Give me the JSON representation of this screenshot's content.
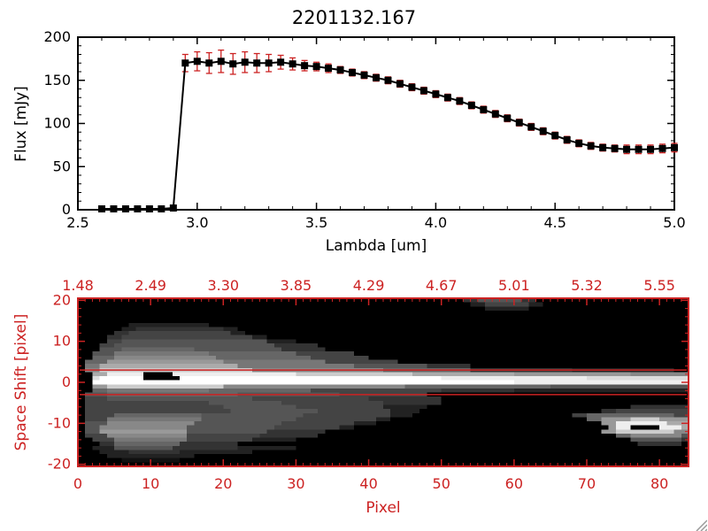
{
  "title": "2201132.167",
  "colors": {
    "red": "#cc2222",
    "foreground": "#000000",
    "background": "#ffffff"
  },
  "chart_data": [
    {
      "type": "line",
      "title": "2201132.167",
      "xlabel": "Lambda [um]",
      "ylabel": "Flux [mJy]",
      "xlim": [
        2.5,
        5.0
      ],
      "ylim": [
        0,
        200
      ],
      "xticks": [
        "2.5",
        "3.0",
        "3.5",
        "4.0",
        "4.5",
        "5.0"
      ],
      "yticks": [
        "0",
        "50",
        "100",
        "150",
        "200"
      ],
      "marker": "filled-square",
      "line_color_role": "foreground",
      "error_color_role": "red",
      "x": [
        2.6,
        2.65,
        2.7,
        2.75,
        2.8,
        2.85,
        2.9,
        2.95,
        3.0,
        3.05,
        3.1,
        3.15,
        3.2,
        3.25,
        3.3,
        3.35,
        3.4,
        3.45,
        3.5,
        3.55,
        3.6,
        3.65,
        3.7,
        3.75,
        3.8,
        3.85,
        3.9,
        3.95,
        4.0,
        4.05,
        4.1,
        4.15,
        4.2,
        4.25,
        4.3,
        4.35,
        4.4,
        4.45,
        4.5,
        4.55,
        4.6,
        4.65,
        4.7,
        4.75,
        4.8,
        4.85,
        4.9,
        4.95,
        5.0
      ],
      "series": [
        {
          "name": "flux_mJy",
          "values": [
            1,
            1,
            1,
            1,
            1,
            1,
            2,
            170,
            172,
            170,
            172,
            169,
            171,
            170,
            170,
            171,
            169,
            167,
            166,
            164,
            162,
            159,
            156,
            153,
            150,
            146,
            142,
            138,
            134,
            130,
            126,
            121,
            116,
            111,
            106,
            101,
            96,
            91,
            86,
            81,
            77,
            74,
            72,
            71,
            70,
            70,
            70,
            71,
            72
          ]
        }
      ],
      "errors": [
        2,
        2,
        2,
        2,
        2,
        2,
        2,
        10,
        11,
        12,
        13,
        12,
        12,
        11,
        10,
        8,
        7,
        6,
        5,
        5,
        4,
        4,
        4,
        4,
        4,
        4,
        4,
        4,
        4,
        4,
        4,
        4,
        4,
        4,
        4,
        4,
        4,
        4,
        4,
        4,
        4,
        4,
        4,
        4,
        5,
        5,
        5,
        5,
        5
      ]
    },
    {
      "type": "heatmap",
      "xlabel": "Pixel",
      "ylabel": "Space Shift [pixel]",
      "xlim": [
        0,
        84
      ],
      "ylim": [
        -20.5,
        20.5
      ],
      "xticks": [
        "0",
        "10",
        "20",
        "30",
        "40",
        "50",
        "60",
        "70",
        "80"
      ],
      "yticks": [
        "20",
        "10",
        "0",
        "-10",
        "-20"
      ],
      "top_axis_labels": [
        "1.48",
        "2.49",
        "3.30",
        "3.85",
        "4.29",
        "4.67",
        "5.01",
        "5.32",
        "5.55"
      ],
      "top_axis_positions": [
        0,
        10,
        20,
        30,
        40,
        50,
        60,
        70,
        80
      ],
      "aperture_lines_shift": [
        3,
        -3
      ],
      "palette": "grayscale",
      "image_rle_rows": [
        "53*0,2*3,6*5,2*3,21*0",
        "54*0,2*2,6*4,2*2,20*0",
        "56*0,6*2,22*0",
        "84*0",
        "84*0",
        "84*0",
        "7*0,11*2,66*0",
        "6*0,2*2,12*3,2*2,62*0",
        "5*0,2*3,14*4,2*2,61*0",
        "4*0,2*3,18*4,2*2,58*0",
        "4*0,2*4,20*5,4*2,54*0",
        "3*0,2*4,22*5,6*3,51*0",
        "3*0,3*5,10*6,12*5,6*3,50*0",
        "2*0,3*5,13*7,12*6,8*4,46*0",
        "2*0,3*6,14*8,13*6,8*4,44*0",
        "1*0,3*6,16*9,14*7,10*4,40*0",
        "1*0,2*7,19*a,16*7,10*5,6*3,30*0",
        "1*0,2*8,21*c,18*8,12*6,14*3,14*2,2*0",
        "2*0,2*a,5*e,4*0,17*e,16*c,14*a,16*9,8*8",
        "2*0,1*d,6*f,5*0,36*f,20*e,14*d",
        "2*0,58*f,24*e",
        "2*0,2*9,16*c,25*8,20*6,19*5",
        "2*0,2*6,14*7,14*6,18*4,10*3,24*2",
        "1*0,3*5,18*6,14*5,12*4,36*0",
        "1*0,3*4,20*5,16*4,10*3,34*0",
        "1*0,17*4,10*5,14*4,8*3,34*0",
        "1*0,19*4,10*5,12*4,6*2,28*0,8*3",
        "1*0,20*4,12*5,10*4,4*2,25*0,2*3,10*4",
        "1*0,4*4,12*6,14*5,12*4,3*2,22*0,2*4,12*6,2*4",
        "1*0,3*4,13*7,13*5,11*4,2*2,27*0,2*6,4*9,4*c,4*9",
        "1*0,3*5,12*8,12*5,10*4,3*2,31*0,2*9,7*e,3*a",
        "1*0,2*5,12*8,12*5,9*4,2*2,35*0,1*9,2*e,4*0,3*e,1*a",
        "1*0,2*5,12*9,11*5,8*3,38*0,2*9,8*c,2*8",
        "1*0,3*4,11*8,10*4,8*3,41*0,2*6,7*8,1*5",
        "2*0,3*4,10*7,9*4,6*2,46*0,7*5,1*3",
        "3*0,2*3,9*6,8*3,55*0,6*3,1*0",
        "2*0,3*2,8*5,9*3,8*2,54*0",
        "3*0,4*2,7*3,10*2,60*0",
        "4*0,12*2,68*0",
        "6*0,8*1,70*0",
        "84*0"
      ]
    }
  ]
}
